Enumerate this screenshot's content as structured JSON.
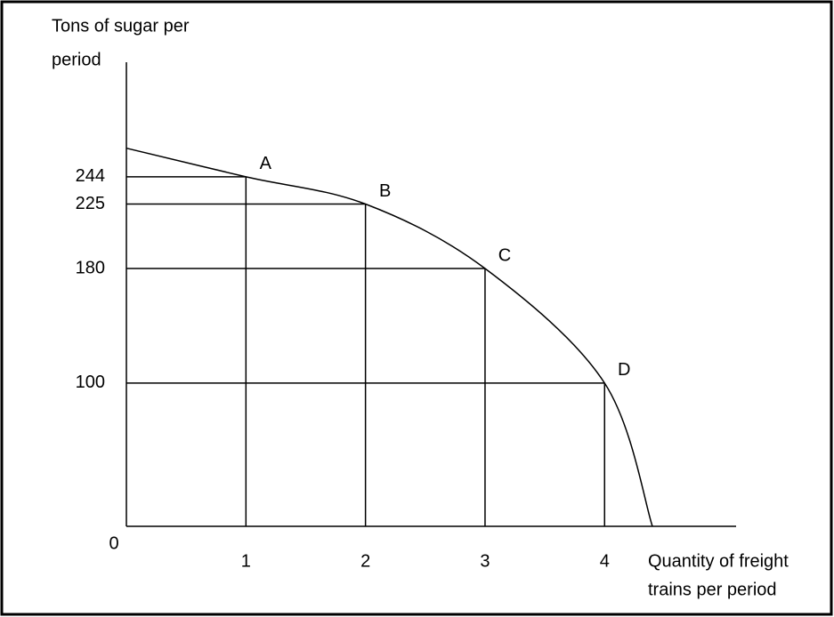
{
  "chart_data": {
    "type": "line",
    "y_label": [
      "Tons of sugar per",
      "period"
    ],
    "x_label": [
      "Quantity of freight",
      "trains per period"
    ],
    "x": [
      0,
      1,
      2,
      3,
      4,
      4.4
    ],
    "values": [
      264,
      244,
      225,
      180,
      100,
      0
    ],
    "point_labels": [
      null,
      "A",
      "B",
      "C",
      "D",
      null
    ],
    "color": "#000000",
    "xlim": [
      0,
      5.1
    ],
    "ylim": [
      0,
      324
    ],
    "xticks": [
      0,
      1,
      2,
      3,
      4
    ],
    "yticks": [
      100,
      180,
      225,
      244
    ]
  }
}
